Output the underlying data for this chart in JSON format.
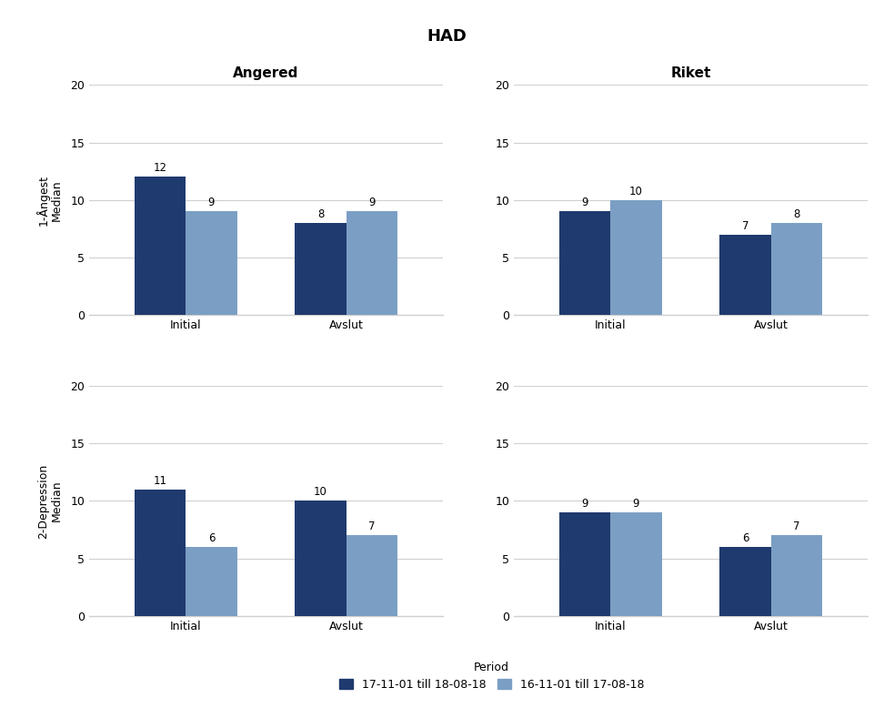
{
  "title": "HAD",
  "col_titles": [
    "Angered",
    "Riket"
  ],
  "row_ylabels": [
    "1-Ångest\nMedian",
    "2-Depression\nMedian"
  ],
  "x_labels": [
    "Initial",
    "Avslut"
  ],
  "ylim": [
    0,
    20
  ],
  "yticks": [
    0,
    5,
    10,
    15,
    20
  ],
  "bar_width": 0.32,
  "color_dark": "#1F3A6E",
  "color_light": "#7B9FC4",
  "background_color": "#ffffff",
  "data": {
    "angered_angest": {
      "Initial": [
        12,
        9
      ],
      "Avslut": [
        8,
        9
      ]
    },
    "riket_angest": {
      "Initial": [
        9,
        10
      ],
      "Avslut": [
        7,
        8
      ]
    },
    "angered_depression": {
      "Initial": [
        11,
        6
      ],
      "Avslut": [
        10,
        7
      ]
    },
    "riket_depression": {
      "Initial": [
        9,
        9
      ],
      "Avslut": [
        6,
        7
      ]
    }
  },
  "legend_label_dark": "17-11-01 till 18-08-18",
  "legend_label_light": "16-11-01 till 17-08-18",
  "legend_title": "Period",
  "title_fontsize": 13,
  "subtitle_fontsize": 11,
  "axis_label_fontsize": 9,
  "tick_fontsize": 9,
  "bar_label_fontsize": 8.5,
  "legend_fontsize": 9
}
